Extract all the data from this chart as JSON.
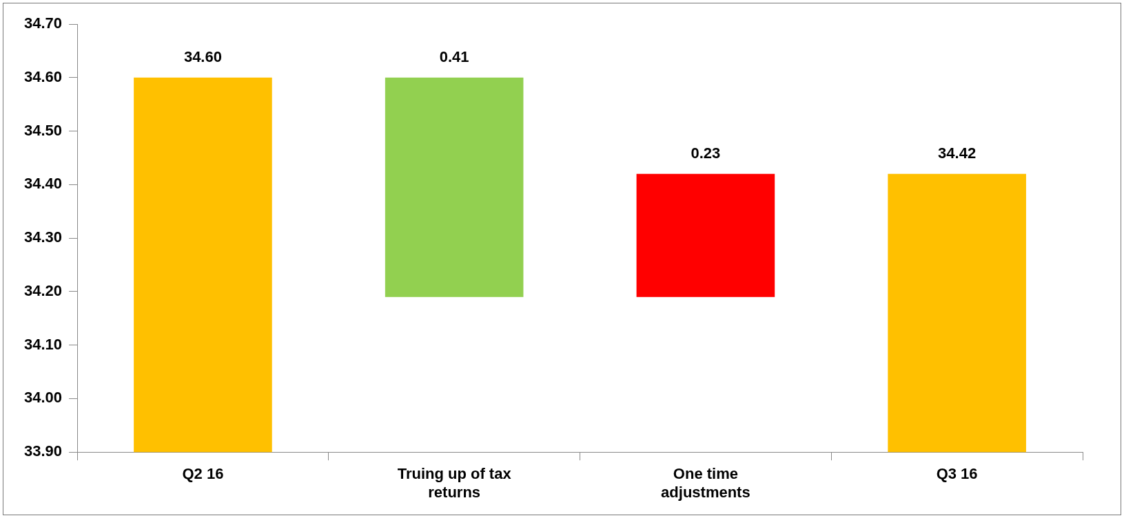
{
  "chart_data": {
    "type": "bar",
    "categories": [
      "Q2 16",
      "Truing up of tax returns",
      "One time adjustments",
      "Q3 16"
    ],
    "values": [
      34.6,
      0.41,
      0.23,
      34.42
    ],
    "base": [
      null,
      34.19,
      34.19,
      null
    ],
    "colors": [
      "#ffc000",
      "#92d050",
      "#ff0000",
      "#ffc000"
    ],
    "value_labels": [
      "34.60",
      "0.41",
      "0.23",
      "34.42"
    ],
    "ylim": [
      33.9,
      34.7
    ],
    "yticks": [
      {
        "value": 33.9,
        "label": "33.90"
      },
      {
        "value": 34.0,
        "label": "34.00"
      },
      {
        "value": 34.1,
        "label": "34.10"
      },
      {
        "value": 34.2,
        "label": "34.20"
      },
      {
        "value": 34.3,
        "label": "34.30"
      },
      {
        "value": 34.4,
        "label": "34.40"
      },
      {
        "value": 34.5,
        "label": "34.50"
      },
      {
        "value": 34.6,
        "label": "34.60"
      },
      {
        "value": 34.7,
        "label": "34.70"
      }
    ],
    "grid": false,
    "legend": false
  }
}
